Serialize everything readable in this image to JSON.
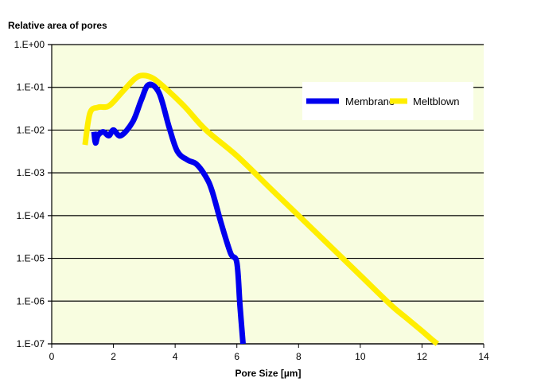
{
  "chart_data": {
    "type": "line",
    "title": "",
    "ylabel": "Relative area of pores",
    "xlabel": "Pore Size [µm]",
    "xlim": [
      0,
      14
    ],
    "ylim": [
      1e-07,
      1
    ],
    "yscale": "log",
    "xticks": [
      "0",
      "2",
      "4",
      "6",
      "8",
      "10",
      "12",
      "14"
    ],
    "yticks": [
      "1.E-07",
      "1.E-06",
      "1.E-05",
      "1.E-04",
      "1.E-03",
      "1.E-02",
      "1.E-01",
      "1.E+00"
    ],
    "grid": "horizontal",
    "legend_position": "top-right",
    "plot_background": "#f8fde0",
    "series": [
      {
        "name": "Membrane",
        "color": "#0000ee",
        "x": [
          1.37,
          1.42,
          1.5,
          1.67,
          1.85,
          2.0,
          2.24,
          2.63,
          2.9,
          3.14,
          3.48,
          3.8,
          4.07,
          4.4,
          4.69,
          5.0,
          5.2,
          5.5,
          5.8,
          6.0,
          6.1,
          6.2
        ],
        "y": [
          0.0091,
          0.005,
          0.0075,
          0.0091,
          0.0074,
          0.01,
          0.0074,
          0.0158,
          0.05,
          0.115,
          0.074,
          0.012,
          0.0032,
          0.002,
          0.0016,
          0.0008,
          0.00037,
          6.3e-05,
          1.3e-05,
          7.9e-06,
          8e-07,
          1e-07
        ]
      },
      {
        "name": "Meltblown",
        "color": "#ffee00",
        "x": [
          1.08,
          1.24,
          1.5,
          1.86,
          2.3,
          2.7,
          2.96,
          3.3,
          3.8,
          4.33,
          5.0,
          6.0,
          7.09,
          8.0,
          9.0,
          10.0,
          11.0,
          11.5,
          12.0,
          12.3,
          12.5
        ],
        "y": [
          0.0045,
          0.025,
          0.034,
          0.037,
          0.08,
          0.16,
          0.19,
          0.16,
          0.08,
          0.034,
          0.01,
          0.0025,
          0.00043,
          0.0001,
          2e-05,
          4e-06,
          8e-07,
          4e-07,
          2e-07,
          1.3e-07,
          1e-07
        ]
      }
    ]
  }
}
